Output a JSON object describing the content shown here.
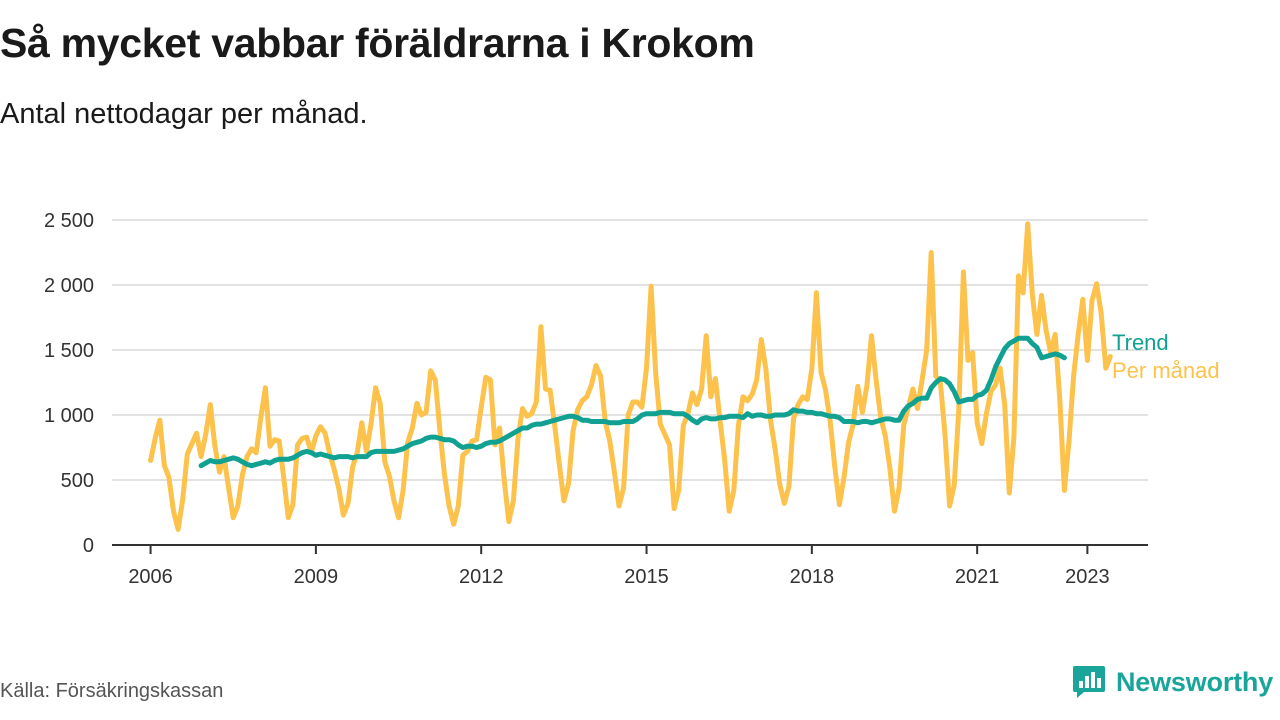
{
  "header": {
    "title": "Så mycket vabbar föräldrarna i Krokom",
    "subtitle": "Antal nettodagar per månad."
  },
  "footer": {
    "source": "Källa: Försäkringskassan",
    "brand": "Newsworthy"
  },
  "colors": {
    "monthly": "#fcc24c",
    "trend": "#11a192",
    "grid": "#d9d9d9",
    "axis": "#333333",
    "brand": "#1aa59a"
  },
  "chart_data": {
    "type": "line",
    "title": "Så mycket vabbar föräldrarna i Krokom",
    "subtitle": "Antal nettodagar per månad.",
    "xlabel": "",
    "ylabel": "",
    "x_unit": "year (decimal, monthly points)",
    "xlim": [
      2005.3,
      2024.1
    ],
    "ylim": [
      0,
      2500
    ],
    "grid": true,
    "legend_position": "right, at line ends",
    "x_ticks": [
      2006,
      2009,
      2012,
      2015,
      2018,
      2021,
      2023
    ],
    "x_tick_labels": [
      "2006",
      "2009",
      "2012",
      "2015",
      "2018",
      "2021",
      "2023"
    ],
    "y_ticks": [
      0,
      500,
      1000,
      1500,
      2000,
      2500
    ],
    "y_tick_labels": [
      "0",
      "500",
      "1 000",
      "1 500",
      "2 000",
      "2 500"
    ],
    "series": [
      {
        "name": "Per månad",
        "color": "#fcc24c",
        "x_start": 2006.0,
        "x_step": 0.0833333,
        "values": [
          650,
          820,
          960,
          610,
          520,
          260,
          120,
          350,
          700,
          780,
          860,
          680,
          850,
          1080,
          760,
          560,
          680,
          440,
          210,
          300,
          540,
          680,
          740,
          710,
          980,
          1210,
          760,
          810,
          800,
          520,
          210,
          310,
          770,
          820,
          830,
          710,
          840,
          910,
          860,
          700,
          580,
          430,
          230,
          320,
          600,
          710,
          940,
          720,
          930,
          1210,
          1090,
          640,
          530,
          340,
          210,
          420,
          790,
          900,
          1090,
          1000,
          1020,
          1340,
          1270,
          880,
          540,
          300,
          160,
          300,
          690,
          720,
          800,
          810,
          1060,
          1290,
          1270,
          770,
          900,
          500,
          180,
          340,
          820,
          1050,
          990,
          1010,
          1100,
          1680,
          1200,
          1190,
          920,
          620,
          340,
          470,
          880,
          1040,
          1110,
          1140,
          1230,
          1380,
          1300,
          950,
          800,
          560,
          300,
          440,
          1000,
          1100,
          1100,
          1060,
          1360,
          1990,
          1320,
          930,
          850,
          770,
          280,
          420,
          920,
          1010,
          1170,
          1080,
          1200,
          1610,
          1140,
          1280,
          960,
          660,
          260,
          420,
          920,
          1140,
          1110,
          1160,
          1270,
          1580,
          1350,
          960,
          740,
          470,
          320,
          450,
          970,
          1080,
          1140,
          1120,
          1360,
          1940,
          1330,
          1190,
          950,
          600,
          310,
          520,
          790,
          930,
          1220,
          1020,
          1230,
          1610,
          1270,
          980,
          840,
          590,
          260,
          440,
          920,
          1060,
          1200,
          1050,
          1270,
          1500,
          2250,
          1300,
          1250,
          850,
          300,
          460,
          1040,
          2100,
          1420,
          1480,
          940,
          780,
          1010,
          1180,
          1230,
          1360,
          1080,
          400,
          830,
          2070,
          1940,
          2470,
          1930,
          1620,
          1920,
          1650,
          1480,
          1620,
          1120,
          420,
          800,
          1300,
          1620,
          1890,
          1420,
          1880,
          2010,
          1780,
          1360,
          1450
        ]
      },
      {
        "name": "Trend",
        "color": "#11a192",
        "x_start": 2006.917,
        "x_step": 0.0833333,
        "values": [
          610,
          630,
          650,
          640,
          640,
          650,
          660,
          670,
          660,
          640,
          620,
          610,
          620,
          630,
          640,
          630,
          650,
          660,
          660,
          660,
          670,
          690,
          710,
          720,
          710,
          690,
          700,
          690,
          680,
          670,
          680,
          680,
          680,
          670,
          680,
          680,
          680,
          710,
          720,
          720,
          720,
          720,
          720,
          730,
          740,
          760,
          780,
          790,
          800,
          820,
          830,
          830,
          820,
          810,
          810,
          800,
          770,
          750,
          760,
          760,
          750,
          760,
          780,
          790,
          790,
          800,
          820,
          840,
          860,
          880,
          900,
          900,
          920,
          930,
          930,
          940,
          950,
          960,
          970,
          980,
          990,
          990,
          980,
          960,
          960,
          950,
          950,
          950,
          950,
          940,
          940,
          940,
          950,
          950,
          950,
          970,
          1000,
          1010,
          1010,
          1010,
          1020,
          1020,
          1020,
          1010,
          1010,
          1010,
          990,
          960,
          940,
          970,
          980,
          970,
          970,
          980,
          980,
          990,
          990,
          990,
          980,
          1010,
          990,
          1000,
          1000,
          990,
          990,
          1000,
          1000,
          1000,
          1010,
          1040,
          1030,
          1030,
          1020,
          1020,
          1010,
          1010,
          1000,
          990,
          990,
          980,
          950,
          950,
          950,
          940,
          950,
          950,
          940,
          950,
          960,
          970,
          970,
          960,
          960,
          1030,
          1070,
          1090,
          1120,
          1130,
          1130,
          1210,
          1250,
          1280,
          1270,
          1240,
          1180,
          1100,
          1110,
          1120,
          1120,
          1150,
          1160,
          1190,
          1270,
          1370,
          1440,
          1510,
          1550,
          1570,
          1590,
          1590,
          1590,
          1550,
          1520,
          1440,
          1450,
          1460,
          1470,
          1460,
          1440
        ]
      }
    ]
  }
}
